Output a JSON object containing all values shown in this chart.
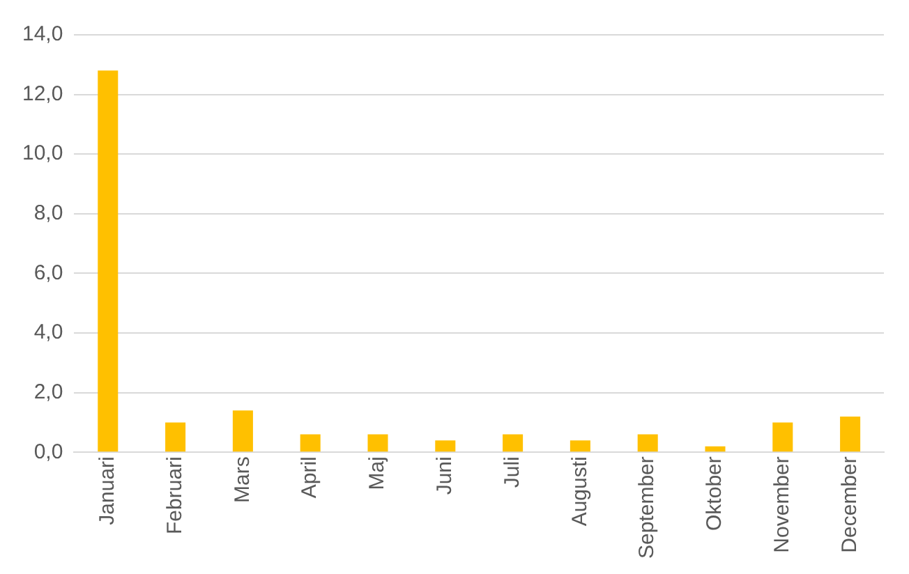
{
  "chart_data": {
    "type": "bar",
    "categories": [
      "Januari",
      "Februari",
      "Mars",
      "April",
      "Maj",
      "Juni",
      "Juli",
      "Augusti",
      "September",
      "Oktober",
      "November",
      "December"
    ],
    "values": [
      12.8,
      1.0,
      1.4,
      0.6,
      0.6,
      0.4,
      0.6,
      0.4,
      0.6,
      0.2,
      1.0,
      1.2
    ],
    "color": "#ffc000",
    "ylim": [
      0,
      14
    ],
    "yticks": [
      {
        "value": 0,
        "label": "0,0"
      },
      {
        "value": 2,
        "label": "2,0"
      },
      {
        "value": 4,
        "label": "4,0"
      },
      {
        "value": 6,
        "label": "6,0"
      },
      {
        "value": 8,
        "label": "8,0"
      },
      {
        "value": 10,
        "label": "10,0"
      },
      {
        "value": 12,
        "label": "12,0"
      },
      {
        "value": 14,
        "label": "14,0"
      }
    ],
    "grid": "y"
  }
}
